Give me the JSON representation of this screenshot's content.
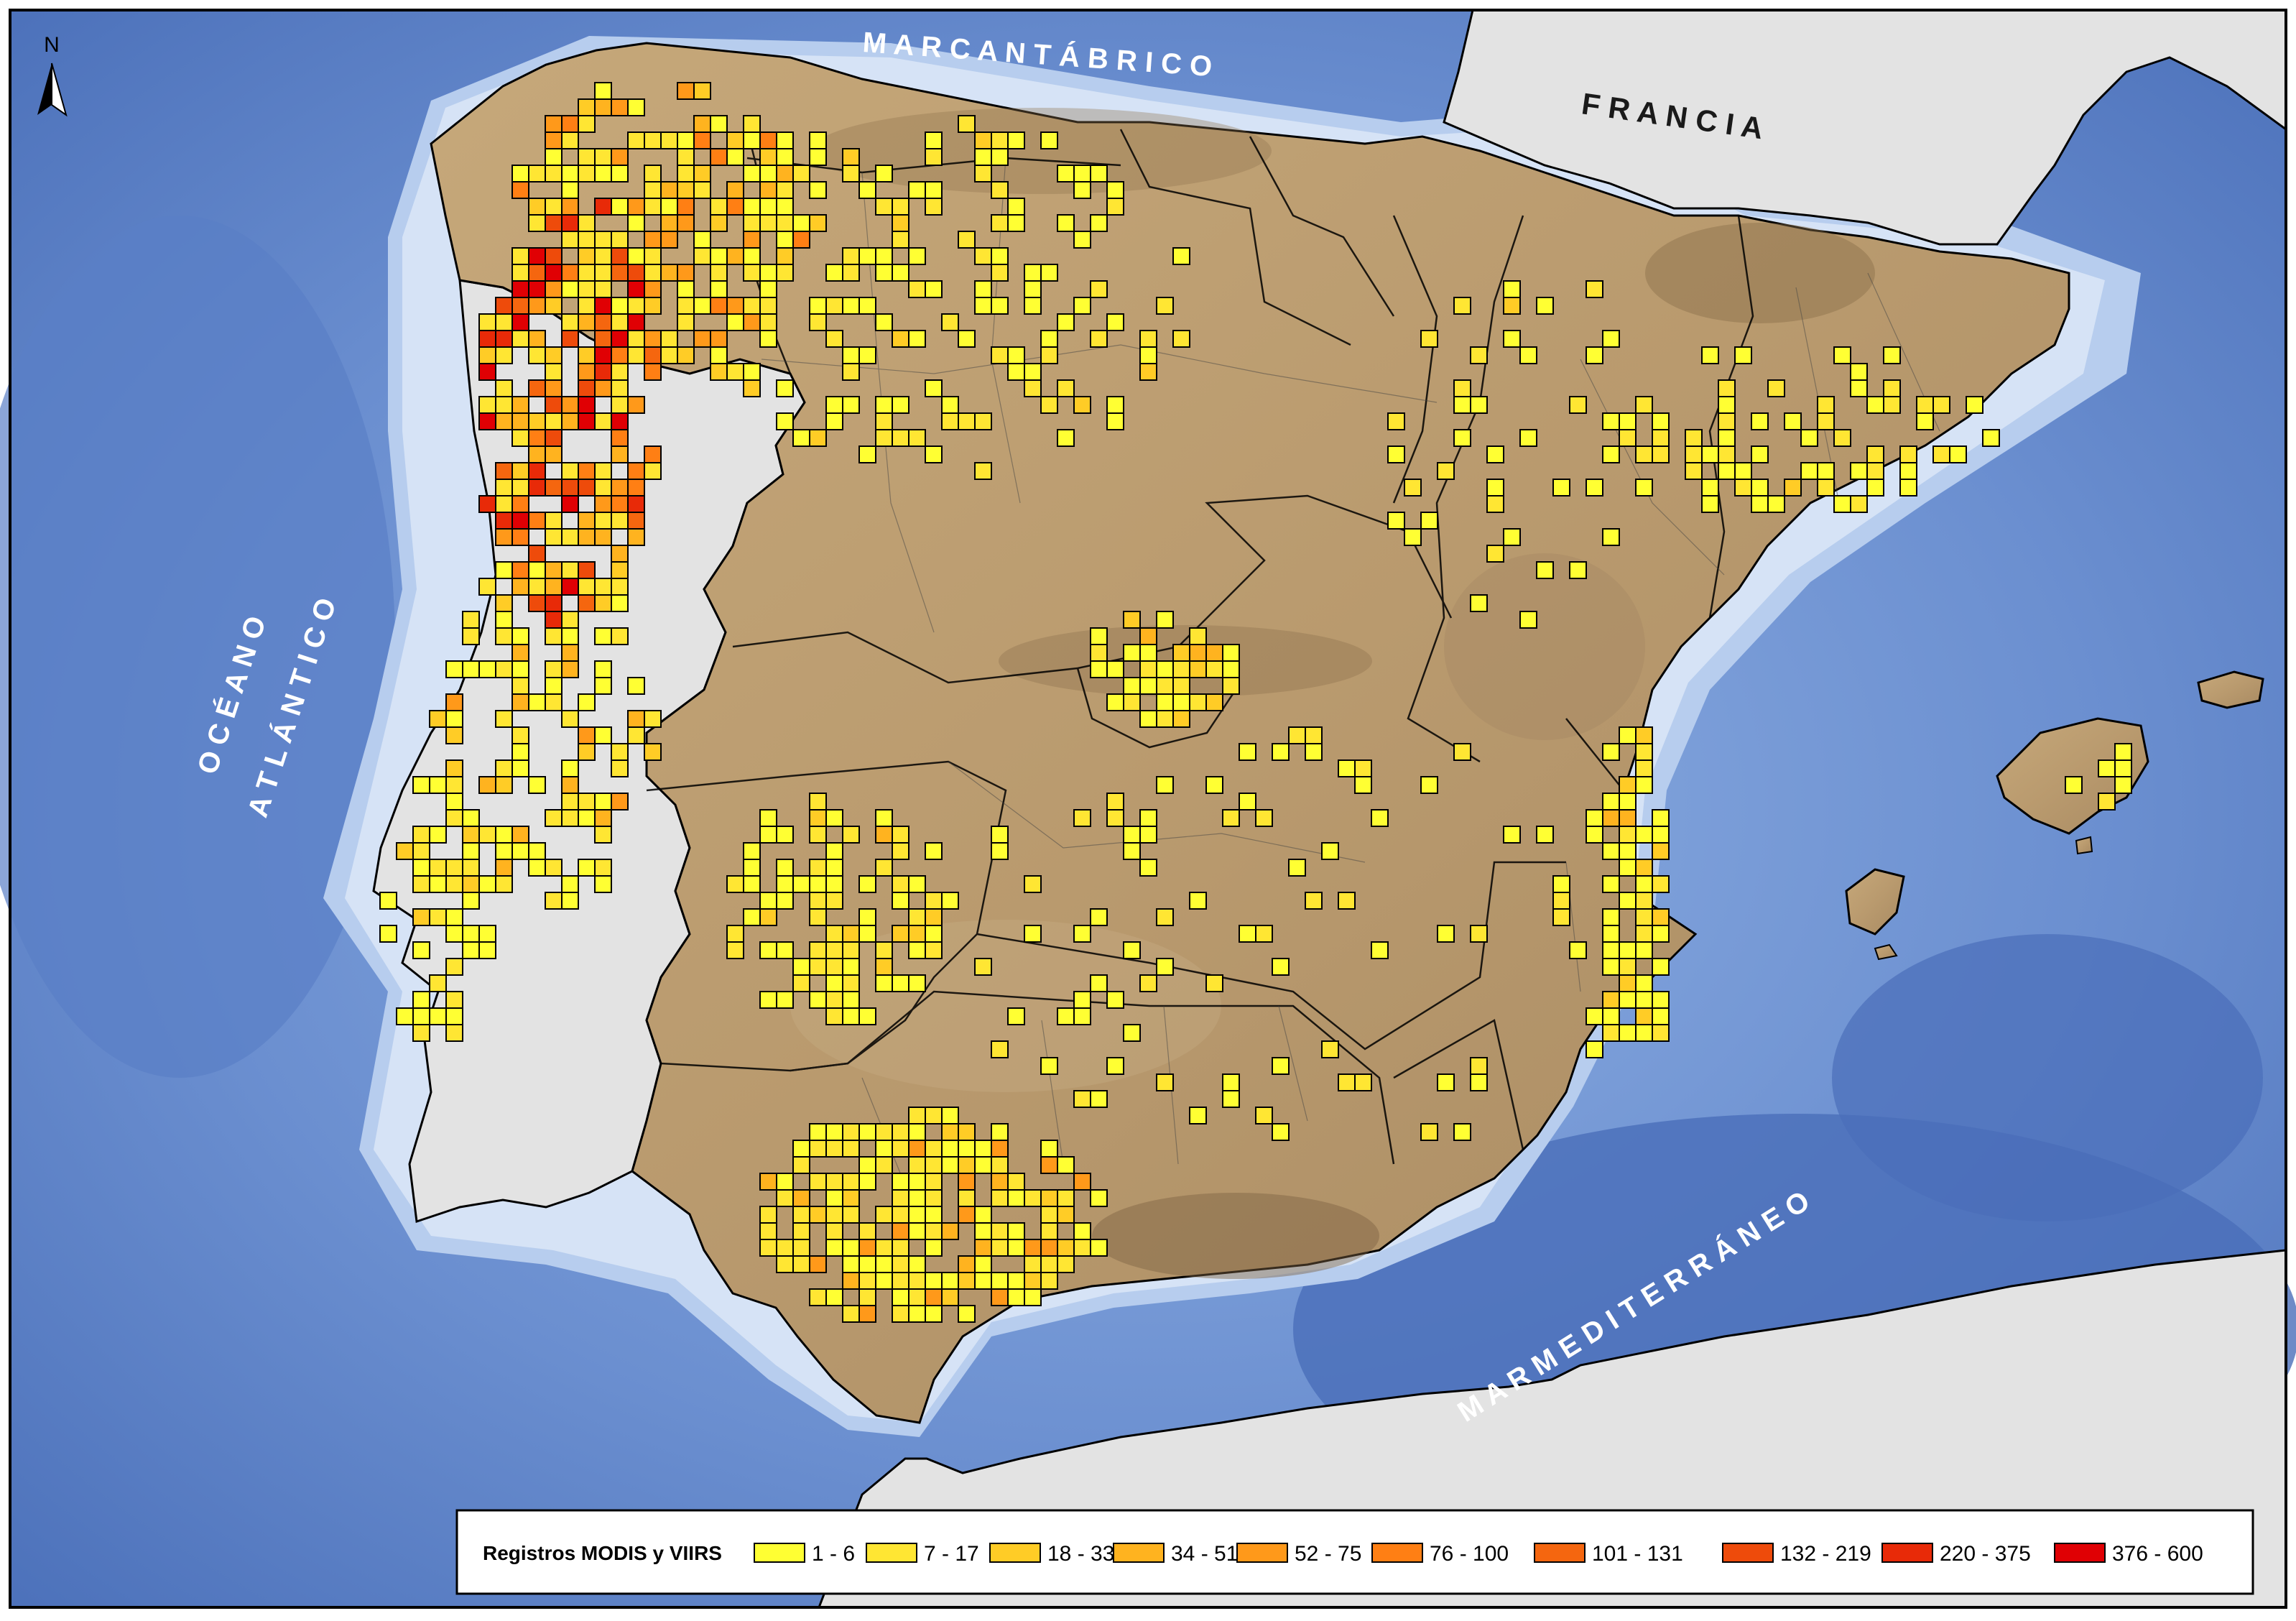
{
  "map": {
    "labels": {
      "north": "N",
      "cantabrico": "M A R   C A N T Á B R I C O",
      "francia": "F R A N C I A",
      "atlantico_1": "O C É A N O",
      "atlantico_2": "A T L Á N T I C O",
      "mediterraneo": "M A R   M E D I T E R R Á N E O"
    },
    "colors": {
      "sea_deep": "#4d72bb",
      "sea_mid": "#6b8fd0",
      "sea_shelf": "#a9c2ea",
      "coast_shallow": "#d6e3f6",
      "land_spain": "#b99a6e",
      "portugal_france_africa": "#e3e3e3",
      "cell_border": "#000000"
    },
    "legend": {
      "title": "Registros MODIS y VIIRS",
      "classes": [
        {
          "label": "1 - 6",
          "color": "#ffff33"
        },
        {
          "label": "7 - 17",
          "color": "#ffe633"
        },
        {
          "label": "18 - 33",
          "color": "#ffcc26"
        },
        {
          "label": "34 - 51",
          "color": "#ffb31f"
        },
        {
          "label": "52 - 75",
          "color": "#ff991a"
        },
        {
          "label": "76 - 100",
          "color": "#ff7f14"
        },
        {
          "label": "101 - 131",
          "color": "#f5660f"
        },
        {
          "label": "132 - 219",
          "color": "#ee4b0b"
        },
        {
          "label": "220 - 375",
          "color": "#e82a08"
        },
        {
          "label": "376 - 600",
          "color": "#e00004"
        }
      ]
    }
  }
}
